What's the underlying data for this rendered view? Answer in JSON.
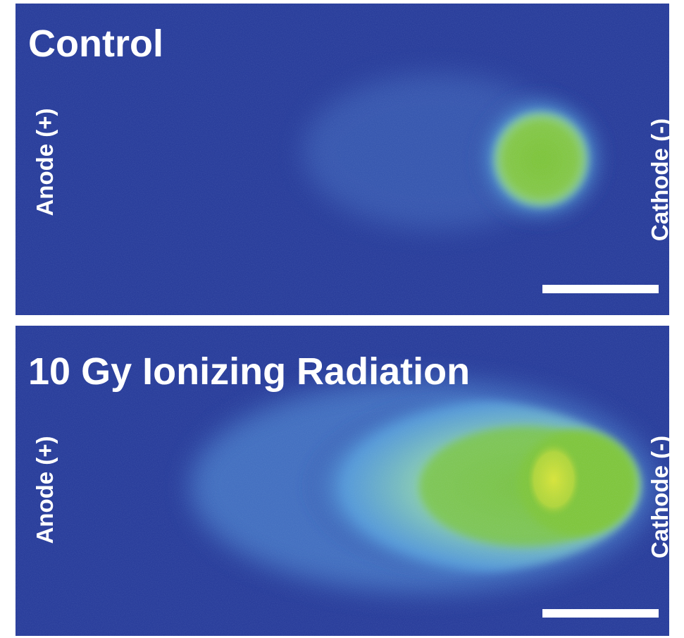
{
  "panels": [
    {
      "title": "Control",
      "anode": "Anode (+)",
      "cathode": "Cathode (-)"
    },
    {
      "title": "10 Gy Ionizing Radiation",
      "anode": "Anode (+)",
      "cathode": "Cathode (-)"
    }
  ]
}
